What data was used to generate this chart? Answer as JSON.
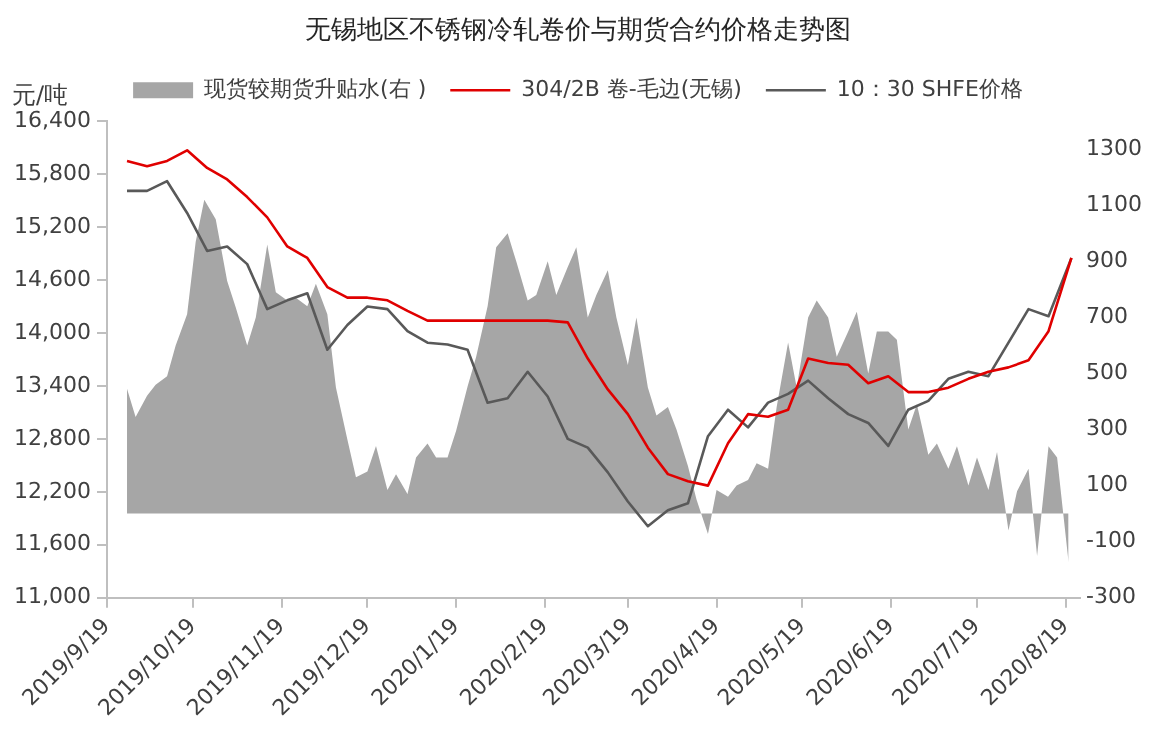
{
  "chart_data": {
    "type": "line",
    "title": "无锡地区不锈钢冷轧卷价与期货合约价格走势图",
    "ylabel": "元/吨",
    "legend": "top",
    "grid": false,
    "marker": "none",
    "x": [
      "2019-09-26",
      "2019-10-03",
      "2019-10-10",
      "2019-10-17",
      "2019-10-24",
      "2019-10-31",
      "2019-11-07",
      "2019-11-14",
      "2019-11-21",
      "2019-11-28",
      "2019-12-05",
      "2019-12-12",
      "2019-12-19",
      "2019-12-26",
      "2020-01-02",
      "2020-01-09",
      "2020-01-16",
      "2020-01-23",
      "2020-01-30",
      "2020-02-06",
      "2020-02-13",
      "2020-02-20",
      "2020-02-27",
      "2020-03-05",
      "2020-03-12",
      "2020-03-19",
      "2020-03-26",
      "2020-04-02",
      "2020-04-09",
      "2020-04-16",
      "2020-04-23",
      "2020-04-30",
      "2020-05-07",
      "2020-05-14",
      "2020-05-21",
      "2020-05-28",
      "2020-06-04",
      "2020-06-11",
      "2020-06-18",
      "2020-06-25",
      "2020-07-02",
      "2020-07-09",
      "2020-07-16",
      "2020-07-23",
      "2020-07-30",
      "2020-08-06",
      "2020-08-13",
      "2020-08-21"
    ],
    "xlim": [
      "2019-09-19",
      "2020-08-24"
    ],
    "xticks": [
      {
        "value": "2019-09-19",
        "label": "2019/9/19"
      },
      {
        "value": "2019-10-19",
        "label": "2019/10/19"
      },
      {
        "value": "2019-11-19",
        "label": "2019/11/19"
      },
      {
        "value": "2019-12-19",
        "label": "2019/12/19"
      },
      {
        "value": "2020-01-19",
        "label": "2020/1/19"
      },
      {
        "value": "2020-02-19",
        "label": "2020/2/19"
      },
      {
        "value": "2020-03-19",
        "label": "2020/3/19"
      },
      {
        "value": "2020-04-19",
        "label": "2020/4/19"
      },
      {
        "value": "2020-05-19",
        "label": "2020/5/19"
      },
      {
        "value": "2020-06-19",
        "label": "2020/6/19"
      },
      {
        "value": "2020-07-19",
        "label": "2020/7/19"
      },
      {
        "value": "2020-08-19",
        "label": "2020/8/19"
      }
    ],
    "ylim": [
      11000,
      16400
    ],
    "yticks": [
      {
        "value": 11000,
        "label": "11,000"
      },
      {
        "value": 11600,
        "label": "11,600"
      },
      {
        "value": 12200,
        "label": "12,200"
      },
      {
        "value": 12800,
        "label": "12,800"
      },
      {
        "value": 13400,
        "label": "13,400"
      },
      {
        "value": 14000,
        "label": "14,000"
      },
      {
        "value": 14600,
        "label": "14,600"
      },
      {
        "value": 15200,
        "label": "15,200"
      },
      {
        "value": 15800,
        "label": "15,800"
      },
      {
        "value": 16400,
        "label": "16,400"
      }
    ],
    "y2lim": [
      -300,
      1400
    ],
    "y2ticks": [
      -300,
      -100,
      100,
      300,
      500,
      700,
      900,
      1100,
      1300
    ],
    "series": [
      {
        "name": "现货较期货升贴水(右 )",
        "type": "area",
        "axis": "y2",
        "color": "#a6a6a6",
        "x": [
          "2019-09-26",
          "2019-09-29",
          "2019-10-03",
          "2019-10-06",
          "2019-10-10",
          "2019-10-13",
          "2019-10-17",
          "2019-10-20",
          "2019-10-23",
          "2019-10-27",
          "2019-10-31",
          "2019-11-03",
          "2019-11-07",
          "2019-11-10",
          "2019-11-14",
          "2019-11-17",
          "2019-11-21",
          "2019-11-24",
          "2019-11-28",
          "2019-12-01",
          "2019-12-05",
          "2019-12-08",
          "2019-12-12",
          "2019-12-15",
          "2019-12-19",
          "2019-12-22",
          "2019-12-26",
          "2019-12-29",
          "2020-01-02",
          "2020-01-05",
          "2020-01-09",
          "2020-01-12",
          "2020-01-16",
          "2020-01-19",
          "2020-01-23",
          "2020-01-26",
          "2020-01-30",
          "2020-02-02",
          "2020-02-06",
          "2020-02-09",
          "2020-02-13",
          "2020-02-16",
          "2020-02-20",
          "2020-02-23",
          "2020-02-27",
          "2020-03-01",
          "2020-03-05",
          "2020-03-08",
          "2020-03-12",
          "2020-03-15",
          "2020-03-19",
          "2020-03-22",
          "2020-03-26",
          "2020-03-29",
          "2020-04-02",
          "2020-04-05",
          "2020-04-09",
          "2020-04-12",
          "2020-04-16",
          "2020-04-19",
          "2020-04-23",
          "2020-04-26",
          "2020-04-30",
          "2020-05-03",
          "2020-05-07",
          "2020-05-10",
          "2020-05-14",
          "2020-05-17",
          "2020-05-21",
          "2020-05-24",
          "2020-05-28",
          "2020-05-31",
          "2020-06-04",
          "2020-06-07",
          "2020-06-11",
          "2020-06-14",
          "2020-06-18",
          "2020-06-21",
          "2020-06-25",
          "2020-06-28",
          "2020-07-02",
          "2020-07-05",
          "2020-07-09",
          "2020-07-12",
          "2020-07-16",
          "2020-07-19",
          "2020-07-23",
          "2020-07-26",
          "2020-07-30",
          "2020-08-02",
          "2020-08-06",
          "2020-08-09",
          "2020-08-13",
          "2020-08-16",
          "2020-08-20"
        ],
        "values": [
          445,
          345,
          420,
          460,
          490,
          600,
          711,
          970,
          1120,
          1050,
          830,
          735,
          600,
          700,
          960,
          790,
          760,
          770,
          740,
          820,
          711,
          450,
          264,
          130,
          150,
          241,
          84,
          140,
          70,
          200,
          250,
          200,
          200,
          296,
          453,
          560,
          740,
          950,
          1000,
          900,
          760,
          780,
          900,
          780,
          880,
          950,
          700,
          780,
          868,
          700,
          530,
          700,
          450,
          350,
          380,
          300,
          170,
          50,
          -73,
          84,
          60,
          100,
          120,
          180,
          160,
          380,
          610,
          450,
          700,
          760,
          700,
          560,
          650,
          720,
          500,
          650,
          650,
          620,
          300,
          390,
          210,
          250,
          160,
          240,
          100,
          200,
          84,
          220,
          -60,
          80,
          160,
          -151,
          240,
          200,
          -174
        ]
      },
      {
        "name": "304/2B 卷-毛边(无锡)",
        "type": "line",
        "color": "#e00000",
        "values": [
          15950,
          15890,
          15950,
          16070,
          15870,
          15740,
          15540,
          15310,
          14980,
          14850,
          14520,
          14400,
          14400,
          14370,
          14250,
          14140,
          14140,
          14140,
          14140,
          14140,
          14140,
          14140,
          14120,
          13710,
          13360,
          13080,
          12700,
          12400,
          12320,
          12270,
          12750,
          13080,
          13050,
          13130,
          13710,
          13660,
          13640,
          13430,
          13510,
          13330,
          13330,
          13380,
          13480,
          13560,
          13610,
          13690,
          14020,
          14850
        ]
      },
      {
        "name": "10：30 SHFE价格",
        "type": "line",
        "color": "#595959",
        "values": [
          15610,
          15610,
          15720,
          15360,
          14930,
          14980,
          14780,
          14270,
          14370,
          14450,
          13810,
          14090,
          14300,
          14270,
          14020,
          13890,
          13870,
          13810,
          13210,
          13260,
          13560,
          13280,
          12800,
          12700,
          12420,
          12090,
          11810,
          11990,
          12070,
          12830,
          13130,
          12930,
          13210,
          13310,
          13460,
          13260,
          13080,
          12980,
          12720,
          13130,
          13230,
          13480,
          13560,
          13510,
          13890,
          14270,
          14190,
          14850
        ]
      }
    ]
  }
}
